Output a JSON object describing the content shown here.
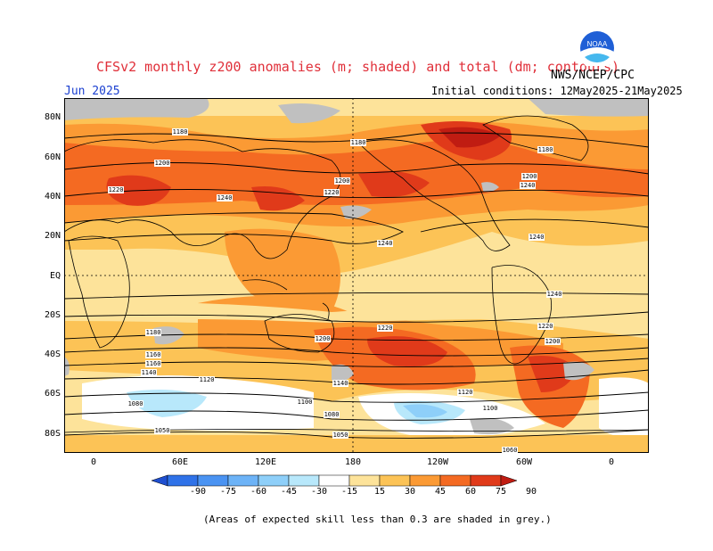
{
  "header": {
    "title": "CFSv2 monthly z200 anomalies (m; shaded) and total (dm; contours)",
    "agency": "NWS/NCEP/CPC",
    "month": "Jun 2025",
    "initial_conditions": "Initial conditions: 12May2025-21May2025"
  },
  "logo": {
    "icon": "noaa-logo-icon",
    "text": "NOAA"
  },
  "axes": {
    "lat_labels": [
      "80N",
      "60N",
      "40N",
      "20N",
      "EQ",
      "20S",
      "40S",
      "60S",
      "80S"
    ],
    "lon_labels": [
      "0",
      "60E",
      "120E",
      "180",
      "120W",
      "60W",
      "0"
    ]
  },
  "contour_labels": [
    "1180",
    "1180",
    "1180",
    "1200",
    "1200",
    "1200",
    "1220",
    "1220",
    "1240",
    "1240",
    "1240",
    "1240",
    "1240",
    "1220",
    "1220",
    "1200",
    "1200",
    "1180",
    "1160",
    "1160",
    "1140",
    "1140",
    "1120",
    "1120",
    "1100",
    "1100",
    "1080",
    "1080",
    "1050",
    "1050",
    "1060"
  ],
  "colorbar": {
    "labels": [
      "-90",
      "-75",
      "-60",
      "-45",
      "-30",
      "-15",
      "15",
      "30",
      "45",
      "60",
      "75",
      "90"
    ],
    "colors": [
      "#1f4fd0",
      "#2f72e8",
      "#4a93f2",
      "#6db3f7",
      "#8ecff9",
      "#b8e8fb",
      "#ffffff",
      "#fde39a",
      "#fcc356",
      "#fb9a34",
      "#f46a22",
      "#e03a1a",
      "#c01c12"
    ]
  },
  "skill_note": "(Areas of expected skill less than 0.3 are shaded in grey.)",
  "colors": {
    "title": "#e0303a",
    "month": "#1a3fd0",
    "grey_skill": "#c0c0c0",
    "anom_pos_light": "#fde39a",
    "anom_pos_mid": "#fcc356",
    "anom_pos_strong": "#fb9a34",
    "anom_pos_stronger": "#f46a22",
    "anom_pos_max": "#c01c12",
    "anom_neg_light": "#b8e8fb",
    "anom_neg_mid": "#8ecff9"
  }
}
